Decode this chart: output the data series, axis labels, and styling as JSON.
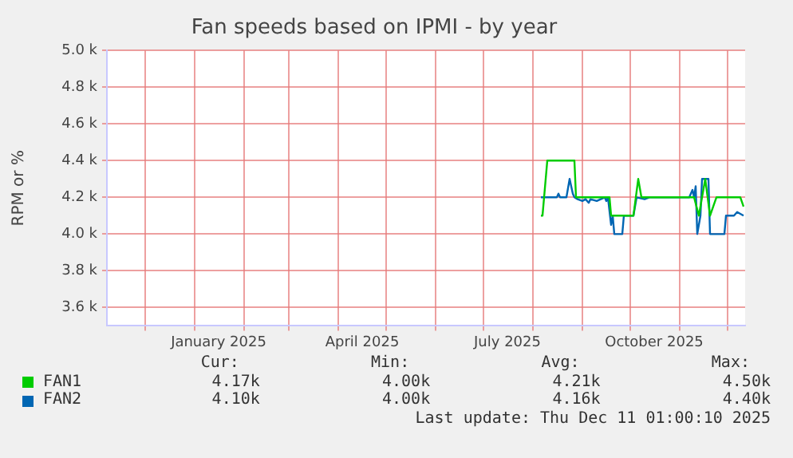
{
  "chart_data": {
    "type": "line",
    "title": "Fan speeds based on IPMI - by year",
    "ylabel": "RPM or %",
    "xlim": [
      "2024-11-07",
      "2025-12-12"
    ],
    "ylim": [
      3500,
      5000
    ],
    "yticks": [
      {
        "value": 3600,
        "label": "3.6 k"
      },
      {
        "value": 3800,
        "label": "3.8 k"
      },
      {
        "value": 4000,
        "label": "4.0 k"
      },
      {
        "value": 4200,
        "label": "4.2 k"
      },
      {
        "value": 4400,
        "label": "4.4 k"
      },
      {
        "value": 4600,
        "label": "4.6 k"
      },
      {
        "value": 4800,
        "label": "4.8 k"
      },
      {
        "value": 5000,
        "label": "5.0 k"
      }
    ],
    "xticks": [
      {
        "value": "2024-12-01",
        "label": null
      },
      {
        "value": "2025-01-01",
        "label": null
      },
      {
        "value": "2025-01-16",
        "label": "January 2025"
      },
      {
        "value": "2025-02-01",
        "label": null
      },
      {
        "value": "2025-03-01",
        "label": null
      },
      {
        "value": "2025-04-01",
        "label": null
      },
      {
        "value": "2025-04-16",
        "label": "April 2025"
      },
      {
        "value": "2025-05-01",
        "label": null
      },
      {
        "value": "2025-06-01",
        "label": null
      },
      {
        "value": "2025-07-01",
        "label": null
      },
      {
        "value": "2025-07-16",
        "label": "July 2025"
      },
      {
        "value": "2025-08-01",
        "label": null
      },
      {
        "value": "2025-09-01",
        "label": null
      },
      {
        "value": "2025-10-01",
        "label": null
      },
      {
        "value": "2025-10-16",
        "label": "October 2025"
      },
      {
        "value": "2025-11-01",
        "label": null
      },
      {
        "value": "2025-12-01",
        "label": null
      }
    ],
    "grid": true,
    "legend": "bottom",
    "marker": "none",
    "line_style": "solid",
    "series": [
      {
        "name": "FAN1",
        "color": "#00cc00",
        "x": [
          "2025-08-06",
          "2025-08-07",
          "2025-08-10",
          "2025-08-27",
          "2025-08-28",
          "2025-09-18",
          "2025-09-19",
          "2025-10-03",
          "2025-10-06",
          "2025-10-08",
          "2025-11-10",
          "2025-11-13",
          "2025-11-17",
          "2025-11-20",
          "2025-11-24",
          "2025-12-09",
          "2025-12-11"
        ],
        "values": [
          4100,
          4100,
          4400,
          4400,
          4200,
          4200,
          4100,
          4100,
          4300,
          4200,
          4200,
          4100,
          4300,
          4100,
          4200,
          4200,
          4150
        ]
      },
      {
        "name": "FAN2",
        "color": "#0066b3",
        "x": [
          "2025-08-06",
          "2025-08-16",
          "2025-08-17",
          "2025-08-18",
          "2025-08-22",
          "2025-08-24",
          "2025-08-26",
          "2025-08-27",
          "2025-08-29",
          "2025-09-01",
          "2025-09-03",
          "2025-09-05",
          "2025-09-06",
          "2025-09-10",
          "2025-09-15",
          "2025-09-16",
          "2025-09-17",
          "2025-09-19",
          "2025-09-20",
          "2025-09-21",
          "2025-09-26",
          "2025-09-27",
          "2025-10-03",
          "2025-10-05",
          "2025-10-10",
          "2025-10-13",
          "2025-11-07",
          "2025-11-09",
          "2025-11-10",
          "2025-11-11",
          "2025-11-12",
          "2025-11-14",
          "2025-11-15",
          "2025-11-19",
          "2025-11-20",
          "2025-11-29",
          "2025-11-30",
          "2025-12-05",
          "2025-12-07",
          "2025-12-11"
        ],
        "values": [
          4200,
          4200,
          4220,
          4200,
          4200,
          4300,
          4220,
          4200,
          4190,
          4180,
          4190,
          4170,
          4190,
          4180,
          4200,
          4180,
          4200,
          4050,
          4100,
          4000,
          4000,
          4100,
          4100,
          4200,
          4190,
          4200,
          4200,
          4240,
          4200,
          4260,
          4000,
          4100,
          4300,
          4300,
          4000,
          4000,
          4100,
          4100,
          4120,
          4100
        ]
      }
    ],
    "annotations": [
      "Cur:",
      "Min:",
      "Avg:",
      "Max:",
      "4.17k",
      "4.00k",
      "4.21k",
      "4.50k",
      "4.10k",
      "4.00k",
      "4.16k",
      "4.40k",
      "Last update: Thu Dec 11 01:00:10 2025"
    ]
  }
}
